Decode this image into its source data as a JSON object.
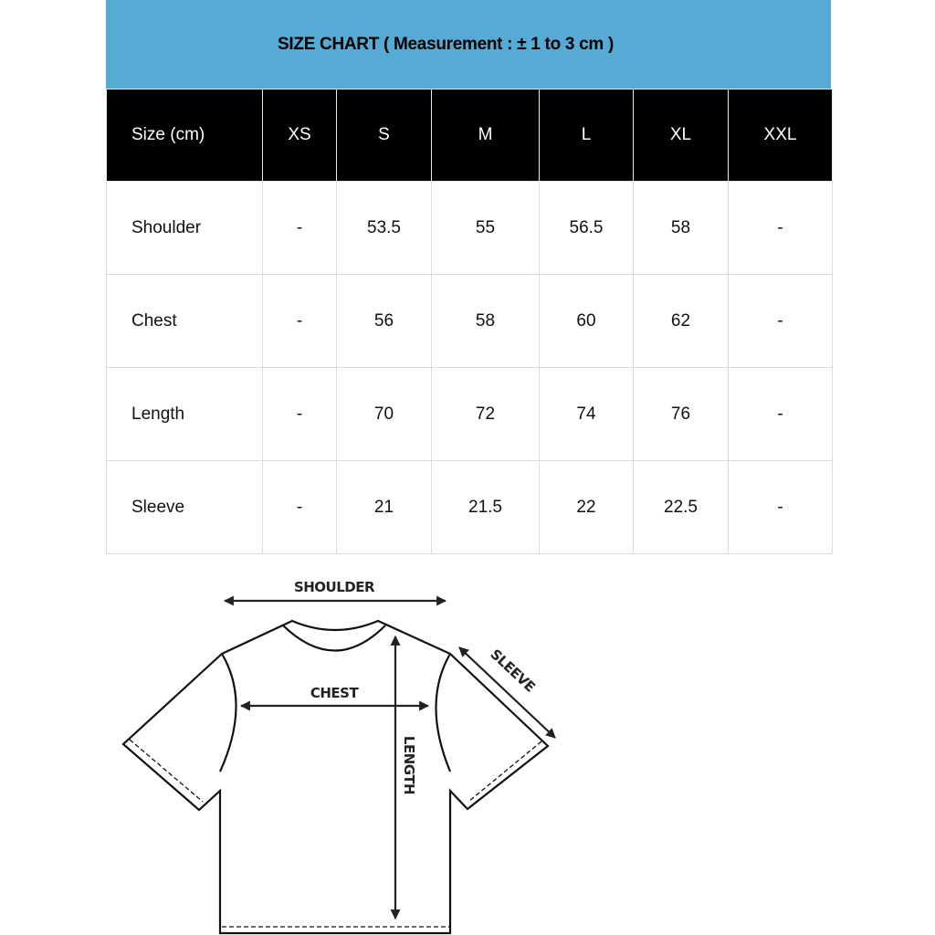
{
  "title": "SIZE CHART ( Measurement : ± 1 to 3 cm )",
  "table": {
    "headers": [
      "Size (cm)",
      "XS",
      "S",
      "M",
      "L",
      "XL",
      "XXL"
    ],
    "rows": [
      [
        "Shoulder",
        "-",
        "53.5",
        "55",
        "56.5",
        "58",
        "-"
      ],
      [
        "Chest",
        "-",
        "56",
        "58",
        "60",
        "62",
        "-"
      ],
      [
        "Length",
        "-",
        "70",
        "72",
        "74",
        "76",
        "-"
      ],
      [
        "Sleeve",
        "-",
        "21",
        "21.5",
        "22",
        "22.5",
        "-"
      ]
    ]
  },
  "diagram": {
    "shoulder": "SHOULDER",
    "chest": "CHEST",
    "length": "LENGTH",
    "sleeve": "SLEEVE"
  },
  "colors": {
    "title_bg": "#56abd4",
    "header_bg": "#000000"
  }
}
